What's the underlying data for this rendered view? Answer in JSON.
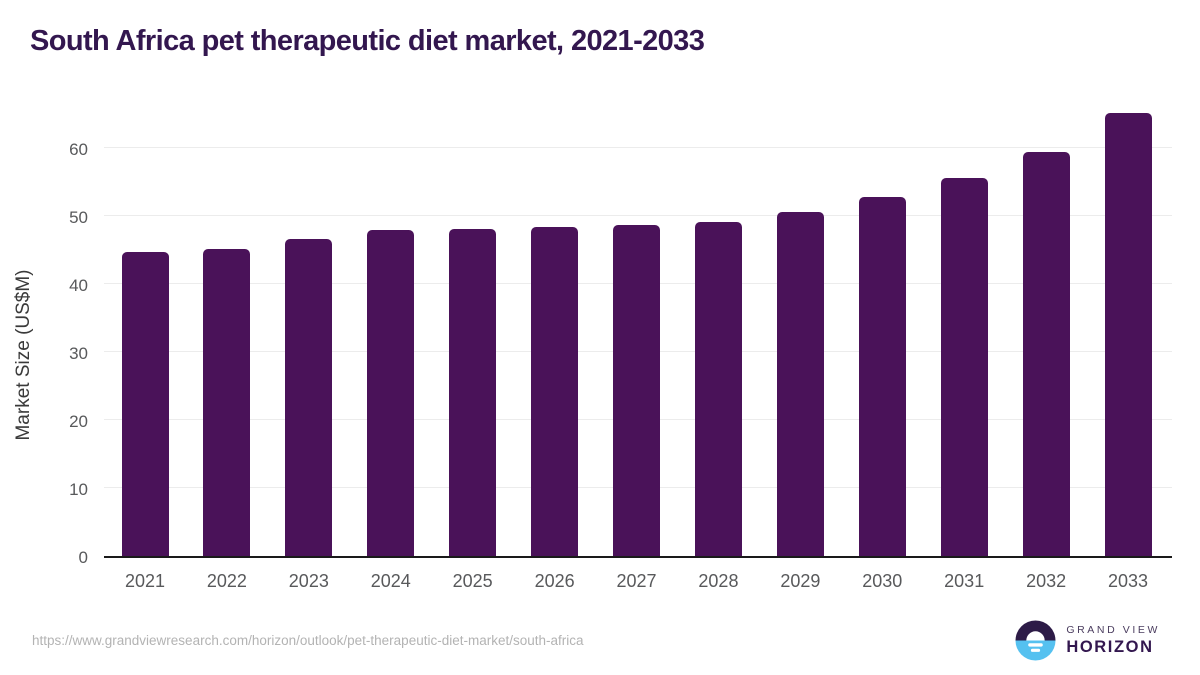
{
  "title": "South Africa pet therapeutic diet market, 2021-2033",
  "chart_data": {
    "type": "bar",
    "categories": [
      "2021",
      "2022",
      "2023",
      "2024",
      "2025",
      "2026",
      "2027",
      "2028",
      "2029",
      "2030",
      "2031",
      "2032",
      "2033"
    ],
    "values": [
      44.8,
      45.2,
      46.7,
      48.0,
      48.2,
      48.4,
      48.7,
      49.2,
      50.7,
      52.8,
      55.7,
      59.5,
      65.2
    ],
    "title": "South Africa pet therapeutic diet market, 2021-2033",
    "xlabel": "",
    "ylabel": "Market Size (US$M)",
    "yticks": [
      0,
      10,
      20,
      30,
      40,
      50,
      60
    ],
    "ylim": [
      0,
      65.5
    ],
    "grid": true,
    "legend": false,
    "bar_color": "#4a1259"
  },
  "colors": {
    "title": "#33174f",
    "bar": "#4a1259",
    "gridline": "#ececec",
    "axis_line": "#1a1a1a",
    "tick_label": "#58595b",
    "axis_title": "#3a3a3a",
    "url_text": "#b3b3b3",
    "logo_dark_purple": "#2d1b47",
    "logo_light_blue": "#55c1f0"
  },
  "footer": {
    "url": "https://www.grandviewresearch.com/horizon/outlook/pet-therapeutic-diet-market/south-africa",
    "logo": {
      "brand_top": "GRAND VIEW",
      "brand_bottom": "HORIZON"
    }
  }
}
